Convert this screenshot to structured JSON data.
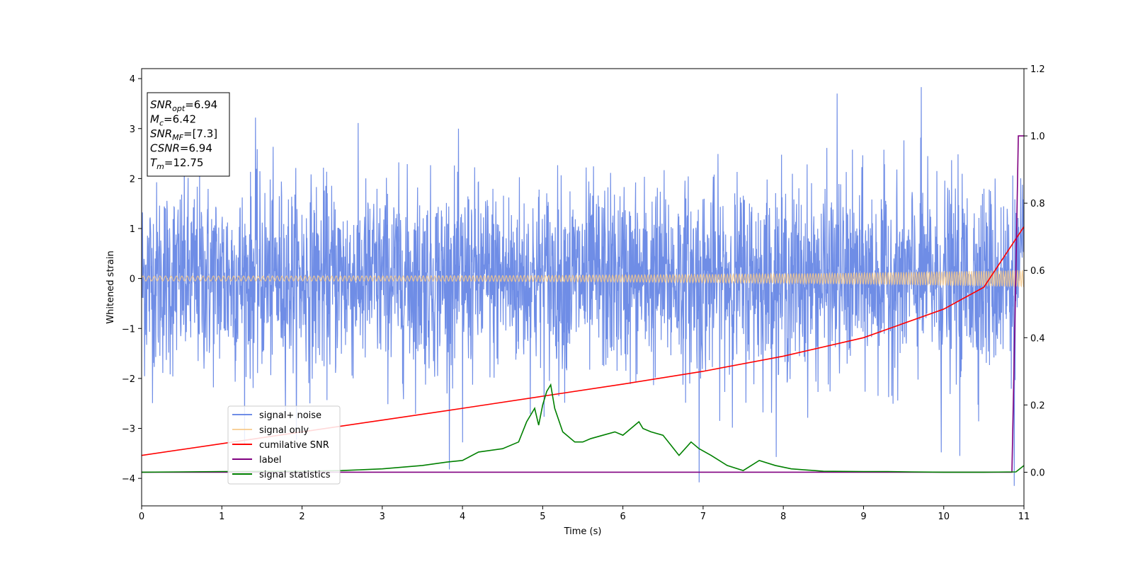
{
  "chart_data": {
    "type": "line",
    "title": "",
    "xlabel": "Time (s)",
    "ylabel": "Whitened strain",
    "xlim": [
      0,
      11
    ],
    "ylim": [
      -4.55,
      4.2
    ],
    "y2lim": [
      -0.1,
      1.2
    ],
    "xticks": [
      0,
      1,
      2,
      3,
      4,
      5,
      6,
      7,
      8,
      9,
      10,
      11
    ],
    "yticks": [
      -4,
      -3,
      -2,
      -1,
      0,
      1,
      2,
      3,
      4
    ],
    "y2ticks": [
      0.0,
      0.2,
      0.4,
      0.6,
      0.8,
      1.0,
      1.2
    ],
    "grid": false,
    "legend_position": "lower-left",
    "annotation": {
      "lines": [
        {
          "main": "SNR",
          "sub": "opt",
          "value": "=6.94"
        },
        {
          "main": "M",
          "sub": "c",
          "value": "=6.42"
        },
        {
          "main": "SNR",
          "sub": "MF",
          "value": "=[7.3]"
        },
        {
          "main": "CSNR",
          "sub": "",
          "value": "=6.94"
        },
        {
          "main": "T",
          "sub": "m",
          "value": "=12.75"
        }
      ]
    },
    "series": [
      {
        "name": "signal+ noise",
        "axis": "left",
        "color": "#6f8de6",
        "kind": "noise",
        "std": 0.95,
        "max_y": 3.83,
        "min_y": -4.15,
        "spikes": [
          {
            "x": 8.67,
            "y": 3.7
          },
          {
            "x": 9.72,
            "y": 3.83
          },
          {
            "x": 1.42,
            "y": 3.22
          },
          {
            "x": 6.95,
            "y": -4.08
          },
          {
            "x": 10.88,
            "y": -4.15
          },
          {
            "x": 10.2,
            "y": -3.55
          },
          {
            "x": 9.97,
            "y": -3.48
          },
          {
            "x": 4.0,
            "y": -3.28
          }
        ]
      },
      {
        "name": "signal only",
        "axis": "left",
        "color": "#f7c98a",
        "kind": "chirp",
        "amp_start": 0.05,
        "amp_end": 0.17
      },
      {
        "name": "cumilative SNR",
        "axis": "right",
        "color": "#ff0000",
        "x": [
          0,
          1,
          2,
          3,
          4,
          5,
          6,
          7,
          8,
          9,
          10,
          10.5,
          11
        ],
        "y": [
          0.05,
          0.085,
          0.12,
          0.155,
          0.19,
          0.226,
          0.262,
          0.3,
          0.345,
          0.4,
          0.485,
          0.55,
          0.73
        ]
      },
      {
        "name": "label",
        "axis": "right",
        "color": "#800080",
        "x": [
          0,
          10.85,
          10.9,
          10.93,
          11
        ],
        "y": [
          0,
          0,
          0.6,
          1.0,
          1.0
        ]
      },
      {
        "name": "signal statistics",
        "axis": "right",
        "color": "#008000",
        "x": [
          0,
          1,
          2,
          2.5,
          3,
          3.5,
          3.8,
          4,
          4.2,
          4.5,
          4.7,
          4.8,
          4.9,
          4.95,
          5.0,
          5.05,
          5.1,
          5.15,
          5.25,
          5.4,
          5.5,
          5.6,
          5.75,
          5.9,
          6.0,
          6.1,
          6.2,
          6.25,
          6.35,
          6.5,
          6.6,
          6.7,
          6.85,
          6.95,
          7.1,
          7.3,
          7.5,
          7.7,
          7.9,
          8.1,
          8.5,
          9.0,
          9.3,
          9.6,
          10.0,
          10.5,
          10.9,
          11
        ],
        "y": [
          0,
          0.002,
          0.003,
          0.005,
          0.01,
          0.02,
          0.03,
          0.035,
          0.06,
          0.07,
          0.09,
          0.15,
          0.19,
          0.14,
          0.2,
          0.24,
          0.26,
          0.19,
          0.12,
          0.09,
          0.09,
          0.1,
          0.11,
          0.12,
          0.11,
          0.13,
          0.15,
          0.13,
          0.12,
          0.11,
          0.08,
          0.05,
          0.09,
          0.07,
          0.05,
          0.02,
          0.005,
          0.035,
          0.02,
          0.01,
          0.003,
          0.002,
          0.002,
          0.001,
          0.0,
          0.0,
          0.001,
          0.02
        ]
      }
    ]
  }
}
